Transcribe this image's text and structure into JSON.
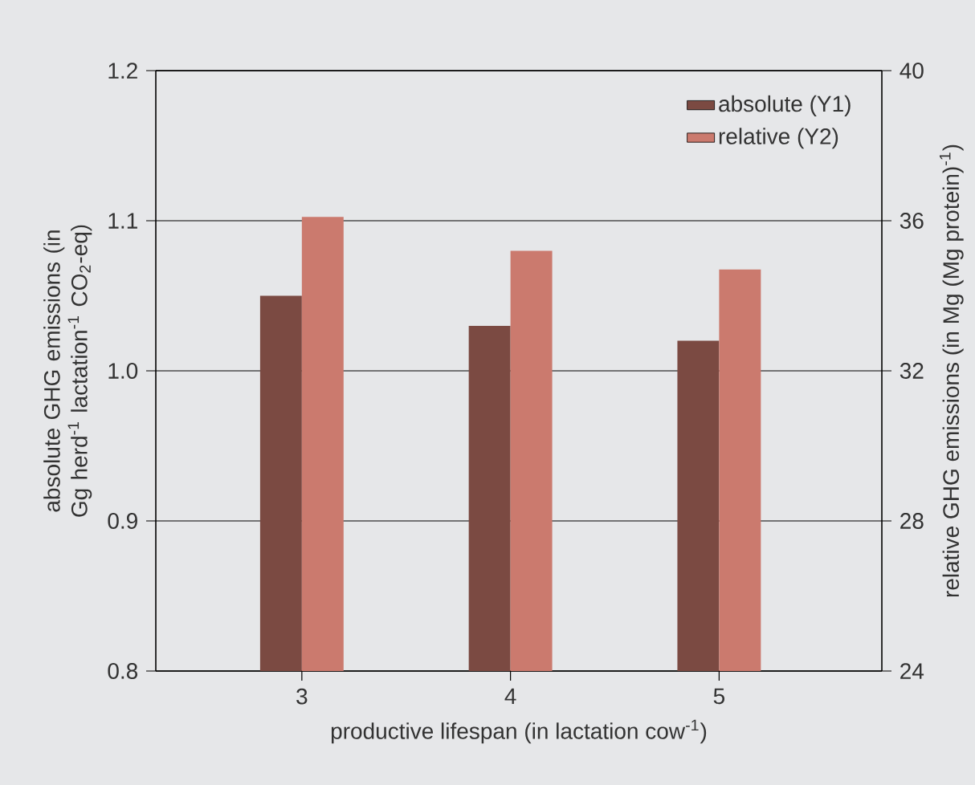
{
  "chart_data": {
    "type": "bar",
    "categories": [
      "3",
      "4",
      "5"
    ],
    "series": [
      {
        "name": "absolute (Y1)",
        "color": "#7b4a42",
        "values": [
          1.05,
          1.03,
          1.02
        ],
        "axis": "y"
      },
      {
        "name": "relative (Y2)",
        "color": "#cb7a6e",
        "values": [
          36.1,
          35.2,
          34.7
        ],
        "axis": "y2"
      }
    ],
    "xlabel": "productive lifespan (in lactation cow$^{-1}$)",
    "ylabel": "absolute GHG emissions (in Gg herd$^{-1}$ lactation$^{-1}$ CO$_{2}$-eq)",
    "y2label": "relative GHG emissions (in Mg (Mg protein)$^{-1}$)",
    "ylim": [
      0.8,
      1.2
    ],
    "yticks": [
      0.8,
      0.9,
      {
        "value": 1.0,
        "label": "1.0"
      },
      1.1,
      1.2
    ],
    "y2lim": [
      24,
      40
    ],
    "y2ticks": [
      24,
      28,
      32,
      36,
      40
    ],
    "grid": "y",
    "legend": "top right"
  }
}
